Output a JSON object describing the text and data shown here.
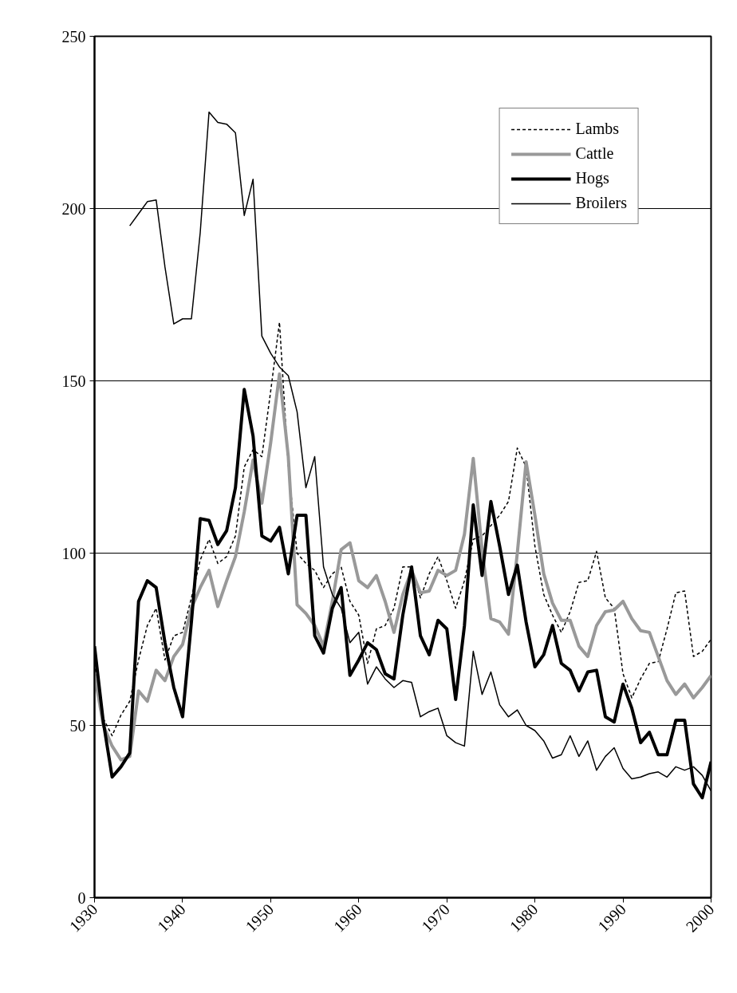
{
  "chart_data": {
    "type": "line",
    "x": [
      1930,
      1931,
      1932,
      1933,
      1934,
      1935,
      1936,
      1937,
      1938,
      1939,
      1940,
      1941,
      1942,
      1943,
      1944,
      1945,
      1946,
      1947,
      1948,
      1949,
      1950,
      1951,
      1952,
      1953,
      1954,
      1955,
      1956,
      1957,
      1958,
      1959,
      1960,
      1961,
      1962,
      1963,
      1964,
      1965,
      1966,
      1967,
      1968,
      1969,
      1970,
      1971,
      1972,
      1973,
      1974,
      1975,
      1976,
      1977,
      1978,
      1979,
      1980,
      1981,
      1982,
      1983,
      1984,
      1985,
      1986,
      1987,
      1988,
      1989,
      1990,
      1991,
      1992,
      1993,
      1994,
      1995,
      1996,
      1997,
      1998,
      1999,
      2000
    ],
    "series": [
      {
        "name": "Lambs",
        "color": "#000000",
        "line_style": "dotted",
        "values": [
          68,
          52,
          47,
          53,
          57,
          69,
          79,
          84,
          69,
          76,
          77,
          87,
          98,
          104,
          97,
          99,
          105,
          125,
          130,
          128,
          147,
          167,
          125,
          100,
          97,
          95,
          90,
          94,
          96,
          86,
          82,
          68,
          78,
          79,
          84,
          96,
          96,
          87,
          94,
          99,
          92,
          84,
          92,
          104,
          105,
          108,
          111,
          115,
          130.5,
          125,
          102,
          88,
          82,
          77,
          83,
          91.5,
          92,
          100.5,
          87,
          84,
          65,
          58,
          63.5,
          68,
          68.5,
          78,
          88.5,
          89,
          70,
          71.5,
          75
        ]
      },
      {
        "name": "Cattle",
        "color": "#999999",
        "line_style": "solid",
        "values": [
          65,
          50,
          44,
          40,
          41,
          60,
          57,
          66,
          63,
          70,
          73.5,
          84,
          90,
          95,
          84.5,
          92,
          99,
          112,
          127,
          114.5,
          132,
          152,
          128,
          85,
          82.5,
          79,
          73,
          86,
          101,
          103,
          92,
          90,
          93.5,
          86,
          77,
          88,
          95,
          88.5,
          89,
          95,
          93.5,
          95,
          105.5,
          127.5,
          101,
          81,
          80,
          76.5,
          100,
          126.5,
          111,
          94,
          85.5,
          80.5,
          80.5,
          73,
          70,
          79,
          83,
          83.5,
          86,
          81,
          77.5,
          77,
          70,
          63,
          59,
          62,
          58,
          61,
          64.5
        ]
      },
      {
        "name": "Hogs",
        "color": "#000000",
        "line_style": "solid",
        "values": [
          73,
          51,
          35,
          38,
          42,
          86,
          92,
          90,
          74,
          61,
          52.5,
          80,
          110,
          109.5,
          102.5,
          106.5,
          119,
          147.5,
          134,
          105,
          103.5,
          107.5,
          94,
          111,
          111,
          76,
          71,
          84,
          90,
          64.5,
          69,
          74,
          72,
          65,
          63.5,
          82,
          96,
          76,
          70.5,
          80.5,
          78,
          57.5,
          79,
          114,
          93.5,
          115,
          102,
          88,
          96.5,
          80,
          67,
          70.5,
          79,
          68,
          66,
          60,
          65.5,
          66,
          52.5,
          51,
          62,
          55,
          45,
          48,
          41.5,
          41.5,
          51.5,
          51.5,
          33,
          29,
          39.5
        ]
      },
      {
        "name": "Broilers",
        "color": "#000000",
        "line_style": "solid",
        "values": [
          null,
          null,
          null,
          null,
          195,
          198.5,
          202,
          202.5,
          183,
          166.5,
          168,
          168,
          193,
          228,
          225,
          224.5,
          222,
          198,
          208.5,
          163,
          158,
          154,
          151.5,
          141,
          119,
          128,
          96,
          88,
          84,
          74,
          77,
          62,
          67,
          63.5,
          61,
          63,
          62.5,
          52.5,
          54,
          55,
          47,
          45,
          44,
          71.5,
          59,
          65.5,
          56,
          52.5,
          54.5,
          50,
          48.5,
          45.5,
          40.5,
          41.5,
          47,
          41,
          45.5,
          37,
          41,
          43.5,
          37.5,
          34.5,
          35,
          36,
          36.5,
          35,
          38,
          37,
          38,
          35.5,
          31
        ]
      }
    ],
    "xlim": [
      1930,
      2000
    ],
    "xticks": [
      1930,
      1940,
      1950,
      1960,
      1970,
      1980,
      1990,
      2000
    ],
    "ylim": [
      0,
      250
    ],
    "yticks": [
      0,
      50,
      100,
      150,
      200,
      250
    ],
    "grid": "y",
    "legend": "top right",
    "marker": "none"
  }
}
